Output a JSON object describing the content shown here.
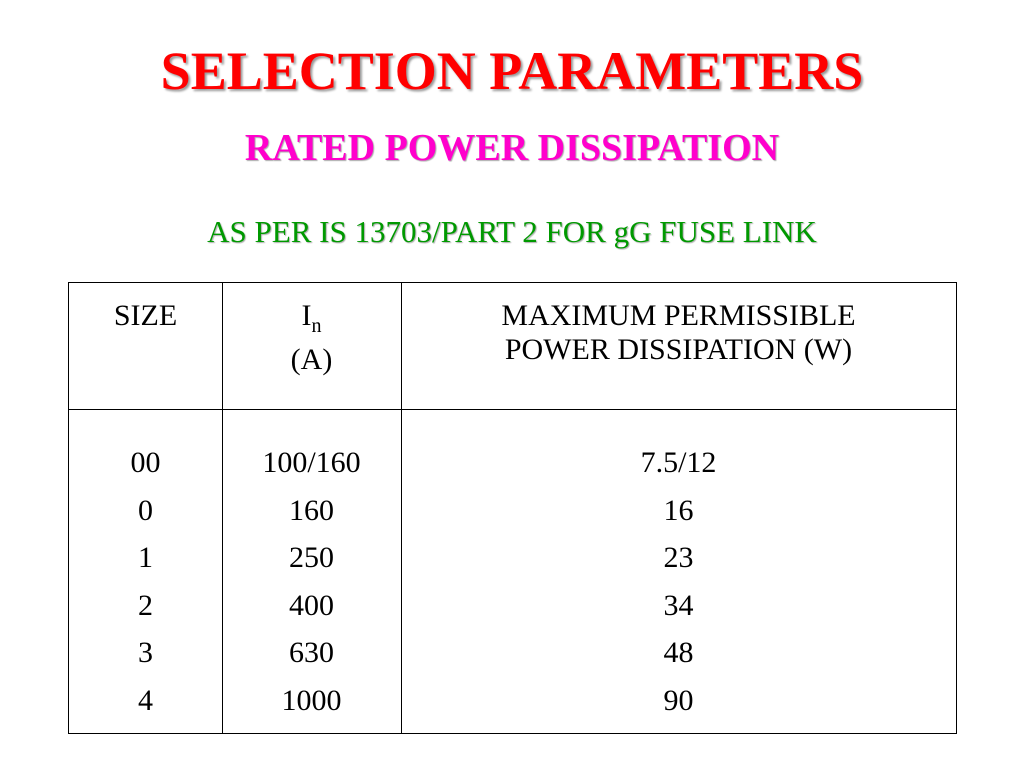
{
  "header": {
    "title": "SELECTION PARAMETERS",
    "subtitle": "RATED POWER DISSIPATION",
    "note": "AS PER IS 13703/PART 2 FOR gG FUSE LINK"
  },
  "table": {
    "columns": [
      {
        "label": "SIZE"
      },
      {
        "label": "I",
        "subscript": "n",
        "unit": "(A)"
      },
      {
        "lines": [
          "MAXIMUM PERMISSIBLE",
          "POWER DISSIPATION (W)"
        ]
      }
    ],
    "rows": [
      [
        "00",
        "100/160",
        "7.5/12"
      ],
      [
        "0",
        "160",
        "16"
      ],
      [
        "1",
        "250",
        "23"
      ],
      [
        "2",
        "400",
        "34"
      ],
      [
        "3",
        "630",
        "48"
      ],
      [
        "4",
        "1000",
        "90"
      ]
    ]
  }
}
